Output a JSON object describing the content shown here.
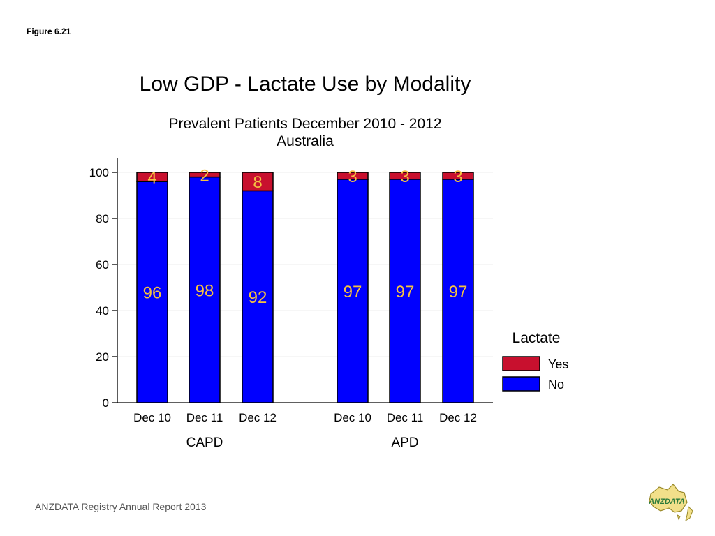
{
  "figure_label": "Figure 6.21",
  "footer_text": "ANZDATA Registry Annual Report 2013",
  "logo_text": "ANZDATA",
  "colors": {
    "yes": "#c8102e",
    "no": "#0000ff",
    "label": "#f5c242"
  },
  "chart_data": {
    "type": "bar",
    "stacked": true,
    "title": "Low GDP - Lactate Use by Modality",
    "subtitle": [
      "Prevalent Patients December 2010 - 2012",
      "Australia"
    ],
    "groups": [
      {
        "name": "CAPD",
        "categories": [
          "Dec 10",
          "Dec 11",
          "Dec 12"
        ]
      },
      {
        "name": "APD",
        "categories": [
          "Dec 10",
          "Dec 11",
          "Dec 12"
        ]
      }
    ],
    "series": [
      {
        "name": "No",
        "values": [
          96,
          98,
          92,
          97,
          97,
          97
        ]
      },
      {
        "name": "Yes",
        "values": [
          4,
          2,
          8,
          3,
          3,
          3
        ]
      }
    ],
    "ylim": [
      0,
      100
    ],
    "yticks": [
      0,
      20,
      40,
      60,
      80,
      100
    ],
    "legend": {
      "title": "Lactate",
      "position": "right",
      "entries": [
        "Yes",
        "No"
      ]
    },
    "grid": true
  }
}
